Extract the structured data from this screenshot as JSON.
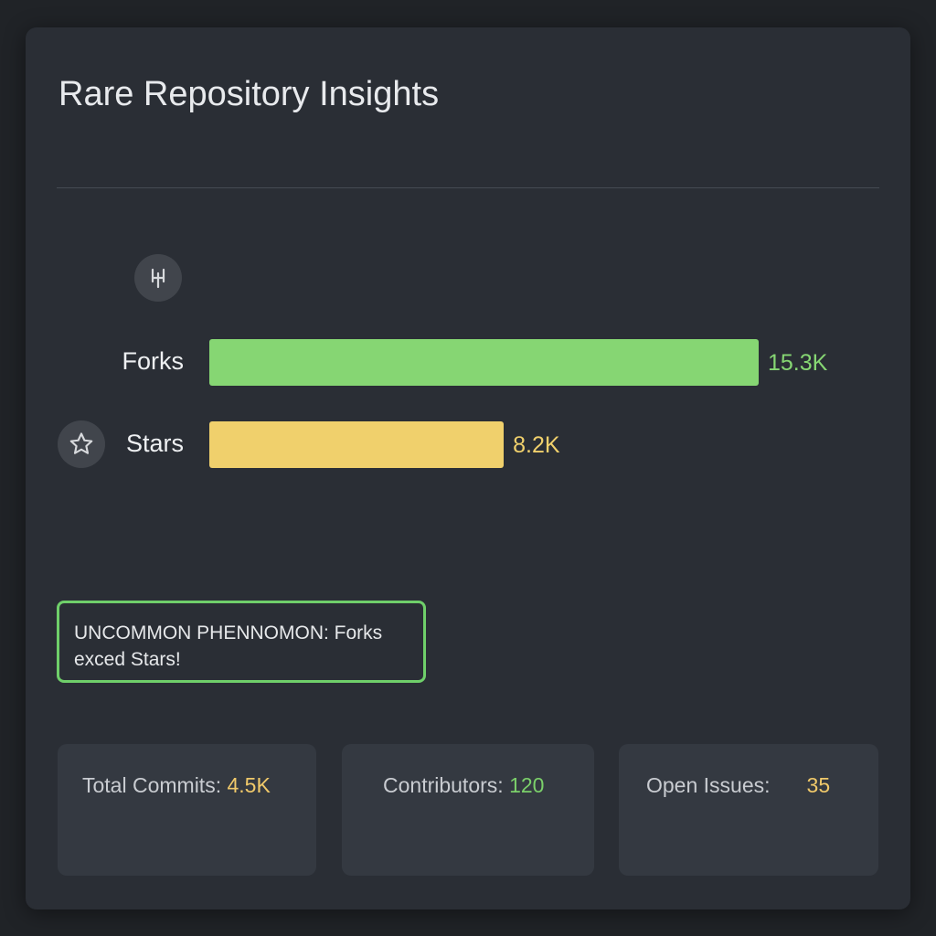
{
  "header": {
    "title": "Rare Repository Insights"
  },
  "colors": {
    "forks": "#86d673",
    "stars": "#f0d06c",
    "accent_green": "#6fcf6a",
    "accent_yellow": "#f0c96a"
  },
  "icons": {
    "forks": "fork-icon",
    "stars": "star-icon"
  },
  "chart_data": {
    "type": "bar",
    "orientation": "horizontal",
    "categories": [
      "Forks",
      "Stars"
    ],
    "values": [
      15300,
      8200
    ],
    "value_labels": [
      "15.3K",
      "8.2K"
    ],
    "colors": [
      "#86d673",
      "#f0d06c"
    ]
  },
  "callout": {
    "text": "UNCOMMON PHENNOMON: Forks exced Stars!"
  },
  "stats": [
    {
      "label": "Total Commits:",
      "value": "4.5K",
      "color": "#f0c96a"
    },
    {
      "label": "Contributors:",
      "value": "120",
      "color": "#7bd06a"
    },
    {
      "label": "Open Issues:",
      "value": "35",
      "color": "#f0c96a"
    }
  ]
}
